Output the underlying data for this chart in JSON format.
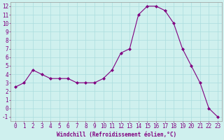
{
  "x": [
    0,
    1,
    2,
    3,
    4,
    5,
    6,
    7,
    8,
    9,
    10,
    11,
    12,
    13,
    14,
    15,
    16,
    17,
    18,
    19,
    20,
    21,
    22,
    23
  ],
  "y": [
    2.5,
    3.0,
    4.5,
    4.0,
    3.5,
    3.5,
    3.5,
    3.0,
    3.0,
    3.0,
    3.5,
    4.5,
    6.5,
    7.0,
    11.0,
    12.0,
    12.0,
    11.5,
    10.0,
    7.0,
    5.0,
    3.0,
    0.0,
    -1.0
  ],
  "line_color": "#800080",
  "marker": "D",
  "marker_size": 2.0,
  "bg_color": "#cff0ee",
  "grid_color": "#aadddd",
  "xlabel": "Windchill (Refroidissement éolien,°C)",
  "tick_color": "#800080",
  "ylim": [
    -1.5,
    12.5
  ],
  "xlim": [
    -0.5,
    23.5
  ],
  "yticks": [
    -1,
    0,
    1,
    2,
    3,
    4,
    5,
    6,
    7,
    8,
    9,
    10,
    11,
    12
  ],
  "xticks": [
    0,
    1,
    2,
    3,
    4,
    5,
    6,
    7,
    8,
    9,
    10,
    11,
    12,
    13,
    14,
    15,
    16,
    17,
    18,
    19,
    20,
    21,
    22,
    23
  ],
  "tick_fontsize": 5.5,
  "xlabel_fontsize": 5.5
}
